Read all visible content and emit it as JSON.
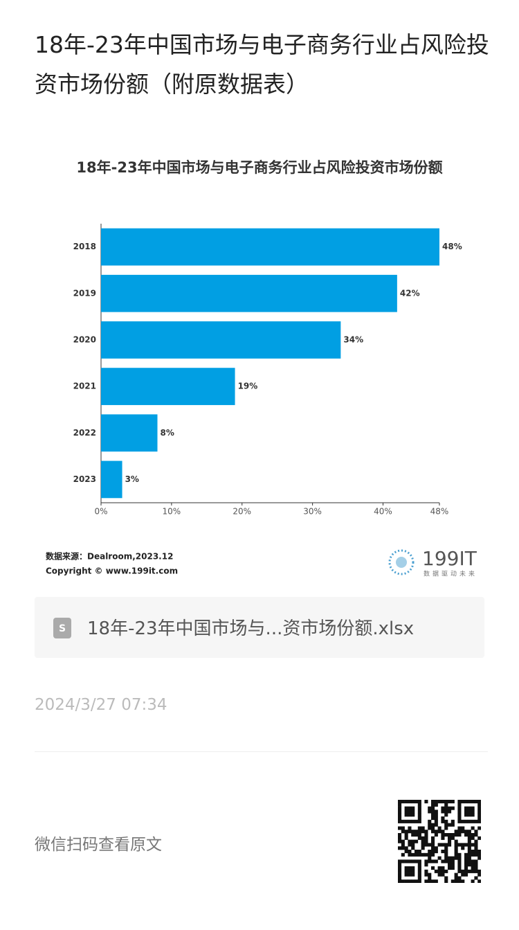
{
  "header": {
    "title": "18年-23年中国市场与电子商务行业占风险投资市场份额（附原数据表）"
  },
  "chart_data": {
    "type": "hbar",
    "title": "18年-23年中国市场与电子商务行业占风险投资市场份额",
    "categories": [
      "2018",
      "2019",
      "2020",
      "2021",
      "2022",
      "2023"
    ],
    "values": [
      48,
      42,
      34,
      19,
      8,
      3
    ],
    "value_labels": [
      "48%",
      "42%",
      "34%",
      "19%",
      "8%",
      "3%"
    ],
    "color": "#019fe3",
    "xlim": [
      0,
      48
    ],
    "xticks": [
      {
        "value": 0,
        "label": "0%"
      },
      {
        "value": 10,
        "label": "10%"
      },
      {
        "value": 20,
        "label": "20%"
      },
      {
        "value": 30,
        "label": "30%"
      },
      {
        "value": 40,
        "label": "40%"
      },
      {
        "value": 48,
        "label": "48%"
      }
    ],
    "grid": false
  },
  "chart_footer": {
    "source": "数据来源：Dealroom,2023.12",
    "copyright": "Copyright © www.199it.com",
    "logo": "199IT",
    "logo_tagline": "数据驱动未来"
  },
  "attachment": {
    "filename": "18年-23年中国市场与...资市场份额.xlsx"
  },
  "date": "2024/3/27 07:34",
  "footer": {
    "qr_hint": "微信扫码查看原文"
  }
}
